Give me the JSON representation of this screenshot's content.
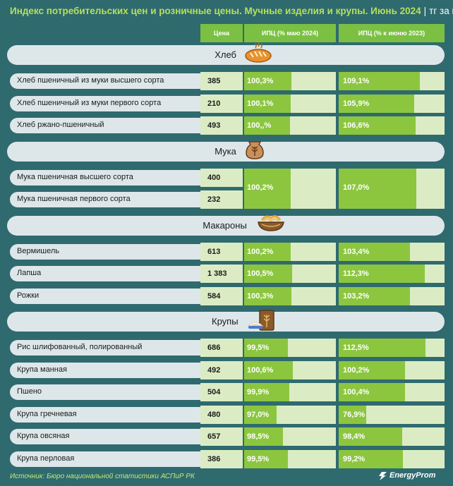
{
  "title": "Индекс потребительских цен и розничные цены. Мучные изделия и крупы. Июнь 2024",
  "unit": "тг за кг",
  "columns": {
    "price": "Цена",
    "ipc1": "ИПЦ (% маю 2024)",
    "ipc2": "ИПЦ (% к июню 2023)"
  },
  "colors": {
    "background": "#2f6a6f",
    "accent": "#7bc043",
    "bar": "#8cc63f",
    "title": "#b6e05a"
  },
  "chart_data": {
    "type": "table",
    "groups": [
      {
        "name": "Хлеб",
        "icon": "bread-icon",
        "items": [
          {
            "name": "Хлеб пшеничный из муки высшего сорта",
            "price": "385",
            "ipc1": "100,3%",
            "ipc2": "109,1%",
            "v1": 100.3,
            "v2": 109.1
          },
          {
            "name": "Хлеб пшеничный из муки первого сорта",
            "price": "210",
            "ipc1": "100,1%",
            "ipc2": "105,9%",
            "v1": 100.1,
            "v2": 105.9
          },
          {
            "name": "Хлеб ржано-пшеничный",
            "price": "493",
            "ipc1": "100,,%",
            "ipc2": "106,6%",
            "v1": 100.0,
            "v2": 106.6
          }
        ]
      },
      {
        "name": "Мука",
        "icon": "flour-sack-icon",
        "merged": true,
        "ipc1": "100,2%",
        "ipc2": "107,0%",
        "v1": 100.2,
        "v2": 107.0,
        "items": [
          {
            "name": "Мука пшеничная высшего сорта",
            "price": "400"
          },
          {
            "name": "Мука пшеничная первого сорта",
            "price": "232"
          }
        ]
      },
      {
        "name": "Макароны",
        "icon": "pasta-bowl-icon",
        "items": [
          {
            "name": "Вермишель",
            "price": "613",
            "ipc1": "100,2%",
            "ipc2": "103,4%",
            "v1": 100.2,
            "v2": 103.4
          },
          {
            "name": "Лапша",
            "price": "1 383",
            "ipc1": "100,5%",
            "ipc2": "112,3%",
            "v1": 100.5,
            "v2": 112.3
          },
          {
            "name": "Рожки",
            "price": "584",
            "ipc1": "100,3%",
            "ipc2": "103,2%",
            "v1": 100.3,
            "v2": 103.2
          }
        ]
      },
      {
        "name": "Крупы",
        "icon": "grain-bag-icon",
        "items": [
          {
            "name": "Рис шлифованный, полированный",
            "price": "686",
            "ipc1": "99,5%",
            "ipc2": "112,5%",
            "v1": 99.5,
            "v2": 112.5
          },
          {
            "name": "Крупа манная",
            "price": "492",
            "ipc1": "100,6%",
            "ipc2": "100,2%",
            "v1": 100.6,
            "v2": 100.2
          },
          {
            "name": "Пшено",
            "price": "504",
            "ipc1": "99,9%",
            "ipc2": "100,4%",
            "v1": 99.9,
            "v2": 100.4
          },
          {
            "name": "Крупа гречневая",
            "price": "480",
            "ipc1": "97,0%",
            "ipc2": "76,9%",
            "v1": 97.0,
            "v2": 76.9
          },
          {
            "name": "Крупа овсяная",
            "price": "657",
            "ipc1": "98,5%",
            "ipc2": "98,4%",
            "v1": 98.5,
            "v2": 98.4
          },
          {
            "name": "Крупа перловая",
            "price": "386",
            "ipc1": "99,5%",
            "ipc2": "99,2%",
            "v1": 99.5,
            "v2": 99.2
          }
        ]
      }
    ]
  },
  "footer": "Источник: Бюро национальной статистики АСПиР РК",
  "logo": "EnergyProm"
}
